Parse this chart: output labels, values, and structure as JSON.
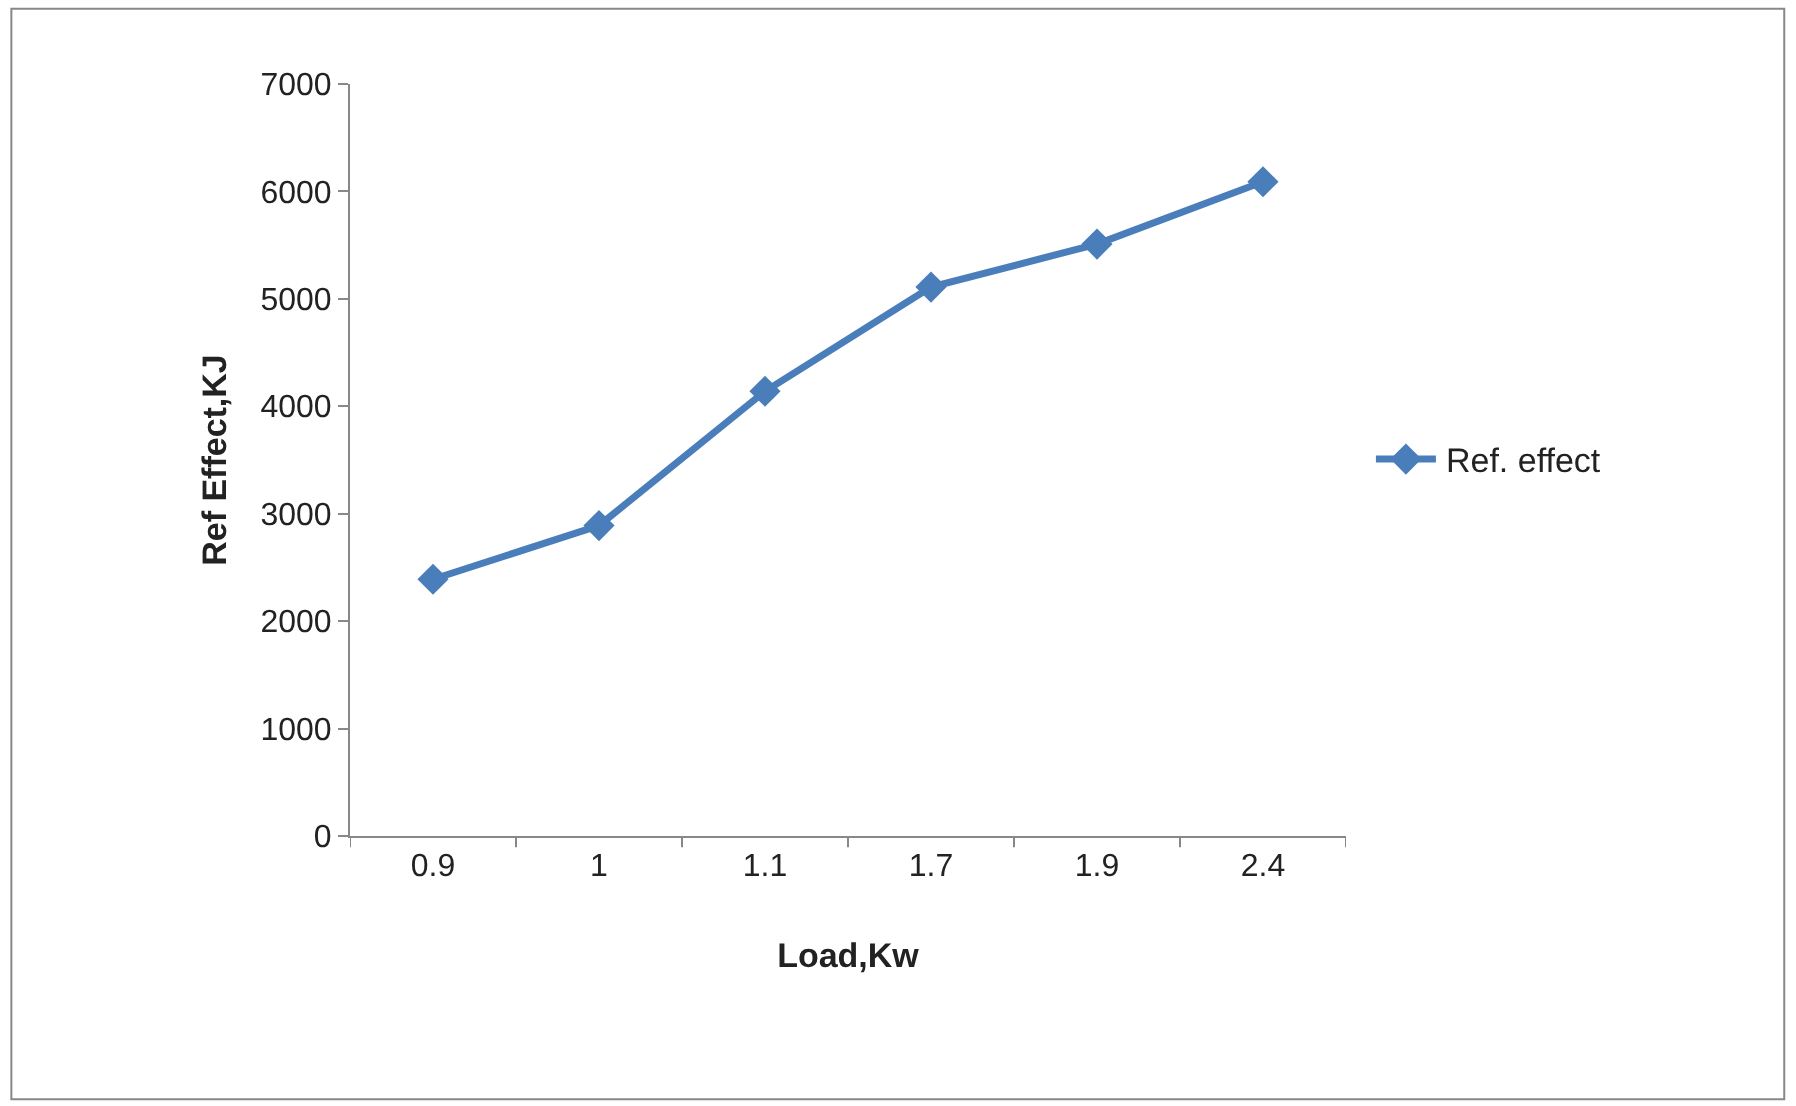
{
  "chart_data": {
    "type": "line",
    "xlabel": "Load,Kw",
    "ylabel": "Ref Effect,KJ",
    "categories": [
      "0.9",
      "1",
      "1.1",
      "1.7",
      "1.9",
      "2.4"
    ],
    "series": [
      {
        "name": "Ref. effect",
        "color": "#4a7ebb",
        "values": [
          2390,
          2890,
          4140,
          5110,
          5510,
          6090
        ]
      }
    ],
    "ylim": [
      0,
      7000
    ],
    "yticks": [
      0,
      1000,
      2000,
      3000,
      4000,
      5000,
      6000,
      7000
    ],
    "legend": "right",
    "marker": "diamond",
    "line_style": "solid"
  }
}
